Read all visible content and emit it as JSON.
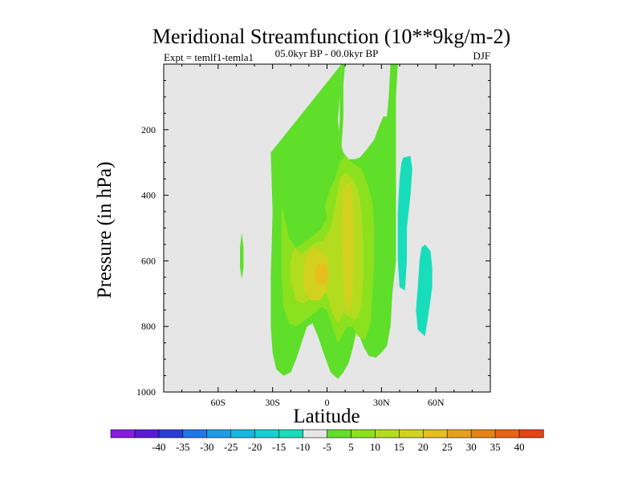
{
  "chart_data": {
    "type": "contour",
    "title": "Meridional Streamfunction (10**9kg/m-2)",
    "subtitle": "05.0kyr BP - 00.0kyr BP",
    "left_label": "Expt = temlf1-temla1",
    "right_label": "DJF",
    "xlabel": "Latitude",
    "ylabel": "Pressure (in hPa)",
    "xlim": [
      -90,
      90
    ],
    "ylim": [
      1000,
      0
    ],
    "x_ticks": [
      {
        "value": -60,
        "label": "60S"
      },
      {
        "value": -30,
        "label": "30S"
      },
      {
        "value": 0,
        "label": "0"
      },
      {
        "value": 30,
        "label": "30N"
      },
      {
        "value": 60,
        "label": "60N"
      }
    ],
    "y_ticks": [
      {
        "value": 1000,
        "label": "1000"
      },
      {
        "value": 800,
        "label": "800"
      },
      {
        "value": 600,
        "label": "600"
      },
      {
        "value": 400,
        "label": "400"
      },
      {
        "value": 200,
        "label": "200"
      }
    ],
    "background_fill": "#e6e6e6",
    "colorbar": {
      "colors": [
        "#8a1be0",
        "#5a1ad6",
        "#2a3fd6",
        "#1e78e6",
        "#1e9be6",
        "#16b6e0",
        "#16cfd4",
        "#18ddbb",
        "#e6e6e6",
        "#5fde2a",
        "#8ce11e",
        "#b4dc1e",
        "#d2d21e",
        "#e6be1e",
        "#e6a01e",
        "#e68216",
        "#e66414",
        "#e64514"
      ],
      "labels": [
        "-40",
        "-35",
        "-30",
        "-25",
        "-20",
        "-15",
        "-10",
        "-5",
        "5",
        "10",
        "15",
        "20",
        "25",
        "30",
        "35",
        "40"
      ]
    },
    "regions": [
      {
        "level": "5",
        "color": "#5fde2a",
        "polygon": [
          [
            -31,
            270
          ],
          [
            -27,
            300
          ],
          [
            -25,
            380
          ],
          [
            -23,
            460
          ],
          [
            -20,
            540
          ],
          [
            -15,
            580
          ],
          [
            -12,
            550
          ],
          [
            -8,
            500
          ],
          [
            -4,
            450
          ],
          [
            0,
            430
          ],
          [
            3,
            380
          ],
          [
            6,
            320
          ],
          [
            8,
            250
          ],
          [
            9,
            160
          ],
          [
            9,
            60
          ],
          [
            10,
            0
          ],
          [
            8,
            0
          ],
          [
            8,
            10
          ],
          [
            7,
            100
          ],
          [
            7,
            170
          ],
          [
            6,
            250
          ],
          [
            4,
            330
          ],
          [
            2,
            380
          ],
          [
            -2,
            400
          ],
          [
            -5,
            370
          ],
          [
            -8,
            320
          ],
          [
            -12,
            290
          ],
          [
            -18,
            270
          ],
          [
            -24,
            260
          ],
          [
            -28,
            262
          ]
        ]
      },
      {
        "level": "5",
        "color": "#5fde2a",
        "polygon": [
          [
            -31,
            270
          ],
          [
            -30,
            450
          ],
          [
            -31,
            650
          ],
          [
            -31,
            800
          ],
          [
            -30,
            880
          ],
          [
            -28,
            930
          ],
          [
            -24,
            950
          ],
          [
            -20,
            940
          ],
          [
            -17,
            900
          ],
          [
            -14,
            850
          ],
          [
            -11,
            800
          ],
          [
            -8,
            790
          ],
          [
            -5,
            830
          ],
          [
            -2,
            880
          ],
          [
            0,
            910
          ],
          [
            2,
            940
          ],
          [
            4,
            950
          ],
          [
            6,
            960
          ],
          [
            9,
            940
          ],
          [
            12,
            910
          ],
          [
            14,
            870
          ],
          [
            16,
            820
          ],
          [
            18,
            830
          ],
          [
            20,
            860
          ],
          [
            23,
            890
          ],
          [
            27,
            895
          ],
          [
            30,
            880
          ],
          [
            33,
            860
          ],
          [
            35,
            800
          ],
          [
            36,
            700
          ],
          [
            38,
            600
          ],
          [
            38,
            400
          ],
          [
            38,
            100
          ],
          [
            39,
            0
          ],
          [
            35,
            0
          ],
          [
            34,
            100
          ],
          [
            33,
            160
          ],
          [
            31,
            160
          ],
          [
            28,
            200
          ],
          [
            26,
            230
          ],
          [
            22,
            260
          ],
          [
            18,
            285
          ],
          [
            15,
            290
          ],
          [
            12,
            290
          ],
          [
            9,
            270
          ],
          [
            7,
            230
          ],
          [
            6,
            170
          ],
          [
            7,
            100
          ],
          [
            8,
            0
          ]
        ]
      },
      {
        "level": "5",
        "color": "#5fde2a",
        "polygon": [
          [
            -47,
            515
          ],
          [
            -46,
            560
          ],
          [
            -46,
            620
          ],
          [
            -47,
            655
          ],
          [
            -48,
            620
          ],
          [
            -48,
            560
          ]
        ]
      },
      {
        "level": "10",
        "color": "#8ce11e",
        "polygon": [
          [
            -25,
            430
          ],
          [
            -23,
            480
          ],
          [
            -21,
            530
          ],
          [
            -17,
            560
          ],
          [
            -12,
            540
          ],
          [
            -7,
            520
          ],
          [
            -3,
            500
          ],
          [
            0,
            470
          ],
          [
            -1,
            430
          ],
          [
            1,
            390
          ],
          [
            5,
            340
          ],
          [
            7,
            300
          ],
          [
            10,
            280
          ],
          [
            14,
            300
          ],
          [
            19,
            320
          ],
          [
            22,
            360
          ],
          [
            25,
            420
          ],
          [
            26,
            500
          ],
          [
            26,
            600
          ],
          [
            25,
            700
          ],
          [
            24,
            790
          ],
          [
            21,
            840
          ],
          [
            17,
            830
          ],
          [
            14,
            800
          ],
          [
            11,
            800
          ],
          [
            8,
            830
          ],
          [
            6,
            850
          ],
          [
            3,
            800
          ],
          [
            0,
            750
          ],
          [
            -3,
            740
          ],
          [
            -7,
            760
          ],
          [
            -12,
            780
          ],
          [
            -17,
            800
          ],
          [
            -21,
            790
          ],
          [
            -24,
            740
          ],
          [
            -25,
            650
          ]
        ]
      },
      {
        "level": "15",
        "color": "#b4dc1e",
        "polygon": [
          [
            -18,
            560
          ],
          [
            -14,
            580
          ],
          [
            -10,
            560
          ],
          [
            -6,
            545
          ],
          [
            -2,
            540
          ],
          [
            2,
            500
          ],
          [
            5,
            420
          ],
          [
            7,
            350
          ],
          [
            10,
            330
          ],
          [
            14,
            350
          ],
          [
            17,
            380
          ],
          [
            19,
            450
          ],
          [
            20,
            550
          ],
          [
            20,
            650
          ],
          [
            19,
            740
          ],
          [
            16,
            780
          ],
          [
            12,
            770
          ],
          [
            9,
            760
          ],
          [
            6,
            790
          ],
          [
            3,
            760
          ],
          [
            0,
            700
          ],
          [
            -4,
            700
          ],
          [
            -8,
            710
          ],
          [
            -13,
            730
          ],
          [
            -17,
            720
          ],
          [
            -20,
            660
          ],
          [
            -20,
            600
          ]
        ]
      },
      {
        "level": "20",
        "color": "#d2d21e",
        "polygon": [
          [
            -12,
            590
          ],
          [
            -8,
            560
          ],
          [
            -3,
            570
          ],
          [
            0,
            590
          ],
          [
            1,
            640
          ],
          [
            0,
            690
          ],
          [
            -4,
            720
          ],
          [
            -9,
            720
          ],
          [
            -12,
            690
          ],
          [
            -13,
            640
          ]
        ]
      },
      {
        "level": "20",
        "color": "#d2d21e",
        "polygon": [
          [
            9,
            380
          ],
          [
            12,
            360
          ],
          [
            14,
            400
          ],
          [
            15,
            500
          ],
          [
            15,
            600
          ],
          [
            14,
            700
          ],
          [
            12,
            760
          ],
          [
            10,
            740
          ],
          [
            9,
            650
          ],
          [
            8,
            500
          ]
        ]
      },
      {
        "level": "25",
        "color": "#e6be1e",
        "polygon": [
          [
            -6,
            615
          ],
          [
            -3,
            608
          ],
          [
            0,
            615
          ],
          [
            1,
            640
          ],
          [
            0,
            665
          ],
          [
            -3,
            675
          ],
          [
            -6,
            665
          ],
          [
            -7,
            640
          ]
        ]
      },
      {
        "level": "-5",
        "color": "#18ddbb",
        "polygon": [
          [
            42,
            285
          ],
          [
            46,
            280
          ],
          [
            47,
            320
          ],
          [
            46,
            400
          ],
          [
            44,
            500
          ],
          [
            44,
            600
          ],
          [
            43,
            690
          ],
          [
            40,
            680
          ],
          [
            39,
            600
          ],
          [
            39,
            450
          ],
          [
            40,
            350
          ],
          [
            41,
            300
          ]
        ]
      },
      {
        "level": "-5",
        "color": "#18ddbb",
        "polygon": [
          [
            54,
            550
          ],
          [
            57,
            570
          ],
          [
            58,
            620
          ],
          [
            58,
            680
          ],
          [
            56,
            760
          ],
          [
            54,
            830
          ],
          [
            50,
            810
          ],
          [
            49,
            750
          ],
          [
            50,
            680
          ],
          [
            51,
            600
          ],
          [
            52,
            560
          ]
        ]
      }
    ]
  }
}
